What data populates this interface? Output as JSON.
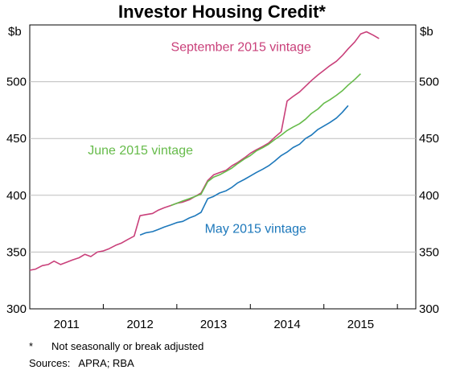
{
  "chart_data": {
    "type": "line",
    "title": "Investor Housing Credit*",
    "y_unit_left": "$b",
    "y_unit_right": "$b",
    "ylim": [
      300,
      550
    ],
    "yticks": [
      300,
      350,
      400,
      450,
      500
    ],
    "xlim": [
      2010.5,
      2015.75
    ],
    "xticks": [
      {
        "label": "2011",
        "pos": 2011.0
      },
      {
        "label": "2012",
        "pos": 2012.0
      },
      {
        "label": "2013",
        "pos": 2013.0
      },
      {
        "label": "2014",
        "pos": 2014.0
      },
      {
        "label": "2015",
        "pos": 2015.0
      }
    ],
    "grid": true,
    "series": [
      {
        "name": "September 2015 vintage",
        "color": "#c9407a",
        "x": [
          2010.5,
          2010.58,
          2010.67,
          2010.75,
          2010.83,
          2010.92,
          2011.0,
          2011.08,
          2011.17,
          2011.25,
          2011.33,
          2011.42,
          2011.5,
          2011.58,
          2011.67,
          2011.75,
          2011.83,
          2011.92,
          2012.0,
          2012.08,
          2012.17,
          2012.25,
          2012.33,
          2012.42,
          2012.5,
          2012.58,
          2012.67,
          2012.75,
          2012.83,
          2012.92,
          2013.0,
          2013.08,
          2013.17,
          2013.25,
          2013.33,
          2013.42,
          2013.5,
          2013.58,
          2013.67,
          2013.75,
          2013.83,
          2013.92,
          2014.0,
          2014.08,
          2014.17,
          2014.25,
          2014.33,
          2014.42,
          2014.5,
          2014.58,
          2014.67,
          2014.75,
          2014.83,
          2014.92,
          2015.0,
          2015.08,
          2015.17,
          2015.25
        ],
        "values": [
          334,
          335,
          338,
          339,
          342,
          339,
          341,
          343,
          345,
          348,
          346,
          350,
          351,
          353,
          356,
          358,
          361,
          364,
          382,
          383,
          384,
          387,
          389,
          391,
          393,
          394,
          396,
          399,
          402,
          413,
          418,
          420,
          422,
          426,
          429,
          433,
          437,
          440,
          443,
          446,
          451,
          456,
          483,
          487,
          491,
          496,
          501,
          506,
          510,
          514,
          518,
          523,
          529,
          535,
          542,
          544,
          541,
          538
        ]
      },
      {
        "name": "June 2015 vintage",
        "color": "#66bb4a",
        "x": [
          2012.42,
          2012.5,
          2012.58,
          2012.67,
          2012.75,
          2012.83,
          2012.92,
          2013.0,
          2013.08,
          2013.17,
          2013.25,
          2013.33,
          2013.42,
          2013.5,
          2013.58,
          2013.67,
          2013.75,
          2013.83,
          2013.92,
          2014.0,
          2014.08,
          2014.17,
          2014.25,
          2014.33,
          2014.42,
          2014.5,
          2014.58,
          2014.67,
          2014.75,
          2014.83,
          2014.92,
          2015.0
        ],
        "values": [
          391,
          393,
          395,
          397,
          399,
          401,
          412,
          416,
          418,
          421,
          424,
          428,
          432,
          435,
          439,
          442,
          445,
          449,
          453,
          457,
          460,
          463,
          467,
          472,
          476,
          481,
          484,
          488,
          492,
          497,
          502,
          507
        ]
      },
      {
        "name": "May 2015 vintage",
        "color": "#1d78bb",
        "x": [
          2012.0,
          2012.08,
          2012.17,
          2012.25,
          2012.33,
          2012.42,
          2012.5,
          2012.58,
          2012.67,
          2012.75,
          2012.83,
          2012.92,
          2013.0,
          2013.08,
          2013.17,
          2013.25,
          2013.33,
          2013.42,
          2013.5,
          2013.58,
          2013.67,
          2013.75,
          2013.83,
          2013.92,
          2014.0,
          2014.08,
          2014.17,
          2014.25,
          2014.33,
          2014.42,
          2014.5,
          2014.58,
          2014.67,
          2014.75,
          2014.83
        ],
        "values": [
          365,
          367,
          368,
          370,
          372,
          374,
          376,
          377,
          380,
          382,
          385,
          397,
          399,
          402,
          404,
          407,
          411,
          414,
          417,
          420,
          423,
          426,
          430,
          435,
          438,
          442,
          445,
          450,
          453,
          458,
          461,
          464,
          468,
          473,
          479
        ]
      }
    ],
    "annotations": [
      {
        "text": "September 2015 vintage",
        "series": 0,
        "at": [
          2012.42,
          527
        ]
      },
      {
        "text": "June 2015 vintage",
        "series": 1,
        "at": [
          2011.29,
          436
        ]
      },
      {
        "text": "May 2015 vintage",
        "series": 2,
        "at": [
          2012.88,
          367
        ]
      }
    ],
    "footnote_marker": "*",
    "footnote_text": "Not seasonally or break adjusted",
    "sources": "Sources:   APRA; RBA"
  }
}
